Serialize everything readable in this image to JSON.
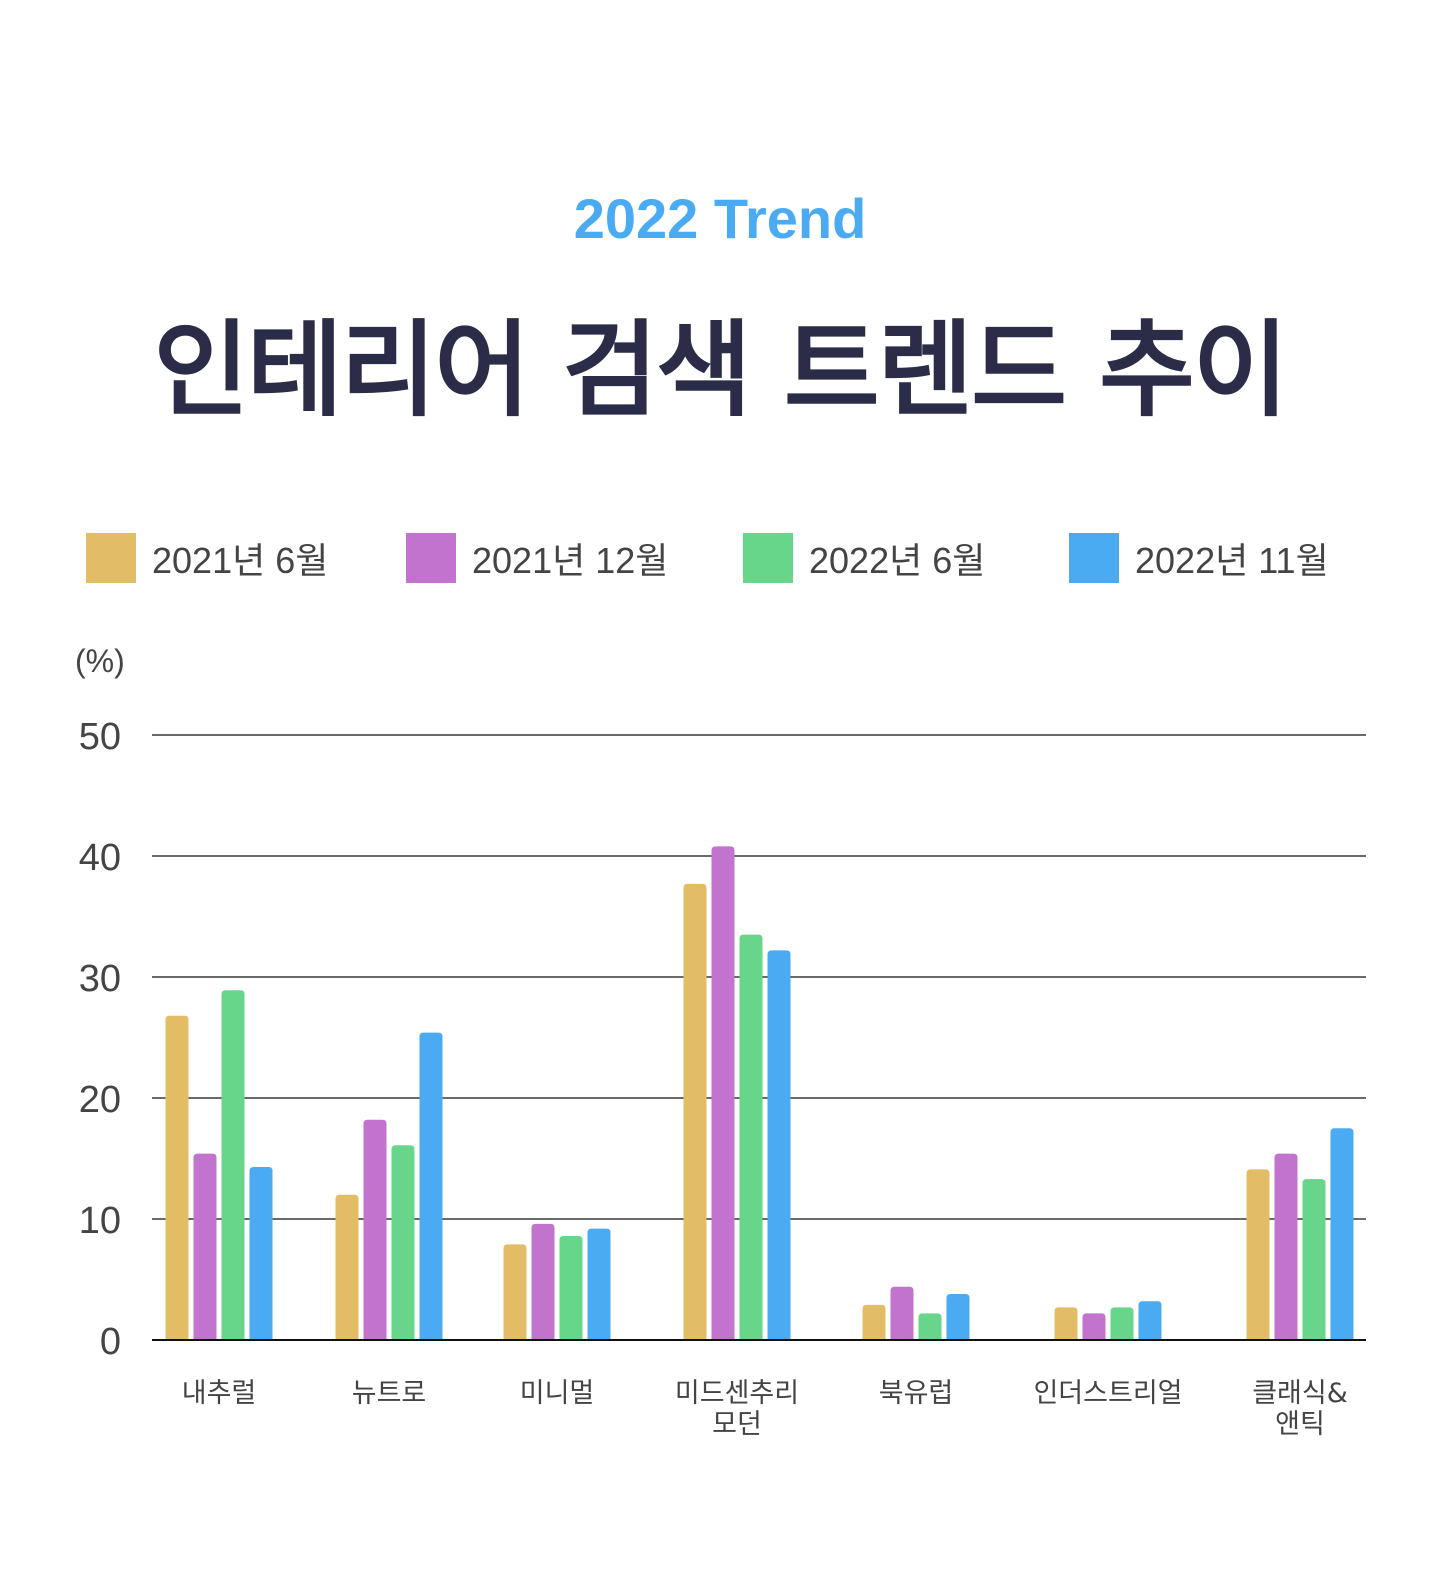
{
  "header": {
    "subtitle": "2022 Trend",
    "title": "인테리어 검색 트렌드 추이"
  },
  "chart_data": {
    "type": "bar",
    "title": "인테리어 검색 트렌드 추이",
    "subtitle": "2022 Trend",
    "ylabel": "(%)",
    "xlabel": "",
    "ylim": [
      0,
      50
    ],
    "yticks": [
      0,
      10,
      20,
      30,
      40,
      50
    ],
    "grid": true,
    "legend_position": "top",
    "categories": [
      [
        "내추럴"
      ],
      [
        "뉴트로"
      ],
      [
        "미니멀"
      ],
      [
        "미드센추리",
        "모던"
      ],
      [
        "북유럽"
      ],
      [
        "인더스트리얼"
      ],
      [
        "클래식&",
        "앤틱"
      ]
    ],
    "series": [
      {
        "name": "2021년 6월",
        "color": "#E3BC66",
        "values": [
          26.8,
          12.0,
          7.9,
          37.7,
          2.9,
          2.7,
          14.1
        ]
      },
      {
        "name": "2021년 12월",
        "color": "#C173CE",
        "values": [
          15.4,
          18.2,
          9.6,
          40.8,
          4.4,
          2.2,
          15.4
        ]
      },
      {
        "name": "2022년 6월",
        "color": "#68D68A",
        "values": [
          28.9,
          16.1,
          8.6,
          33.5,
          2.2,
          2.7,
          13.3
        ]
      },
      {
        "name": "2022년 11월",
        "color": "#4AABF2",
        "values": [
          14.3,
          25.4,
          9.2,
          32.2,
          3.8,
          3.2,
          17.5
        ]
      }
    ]
  }
}
